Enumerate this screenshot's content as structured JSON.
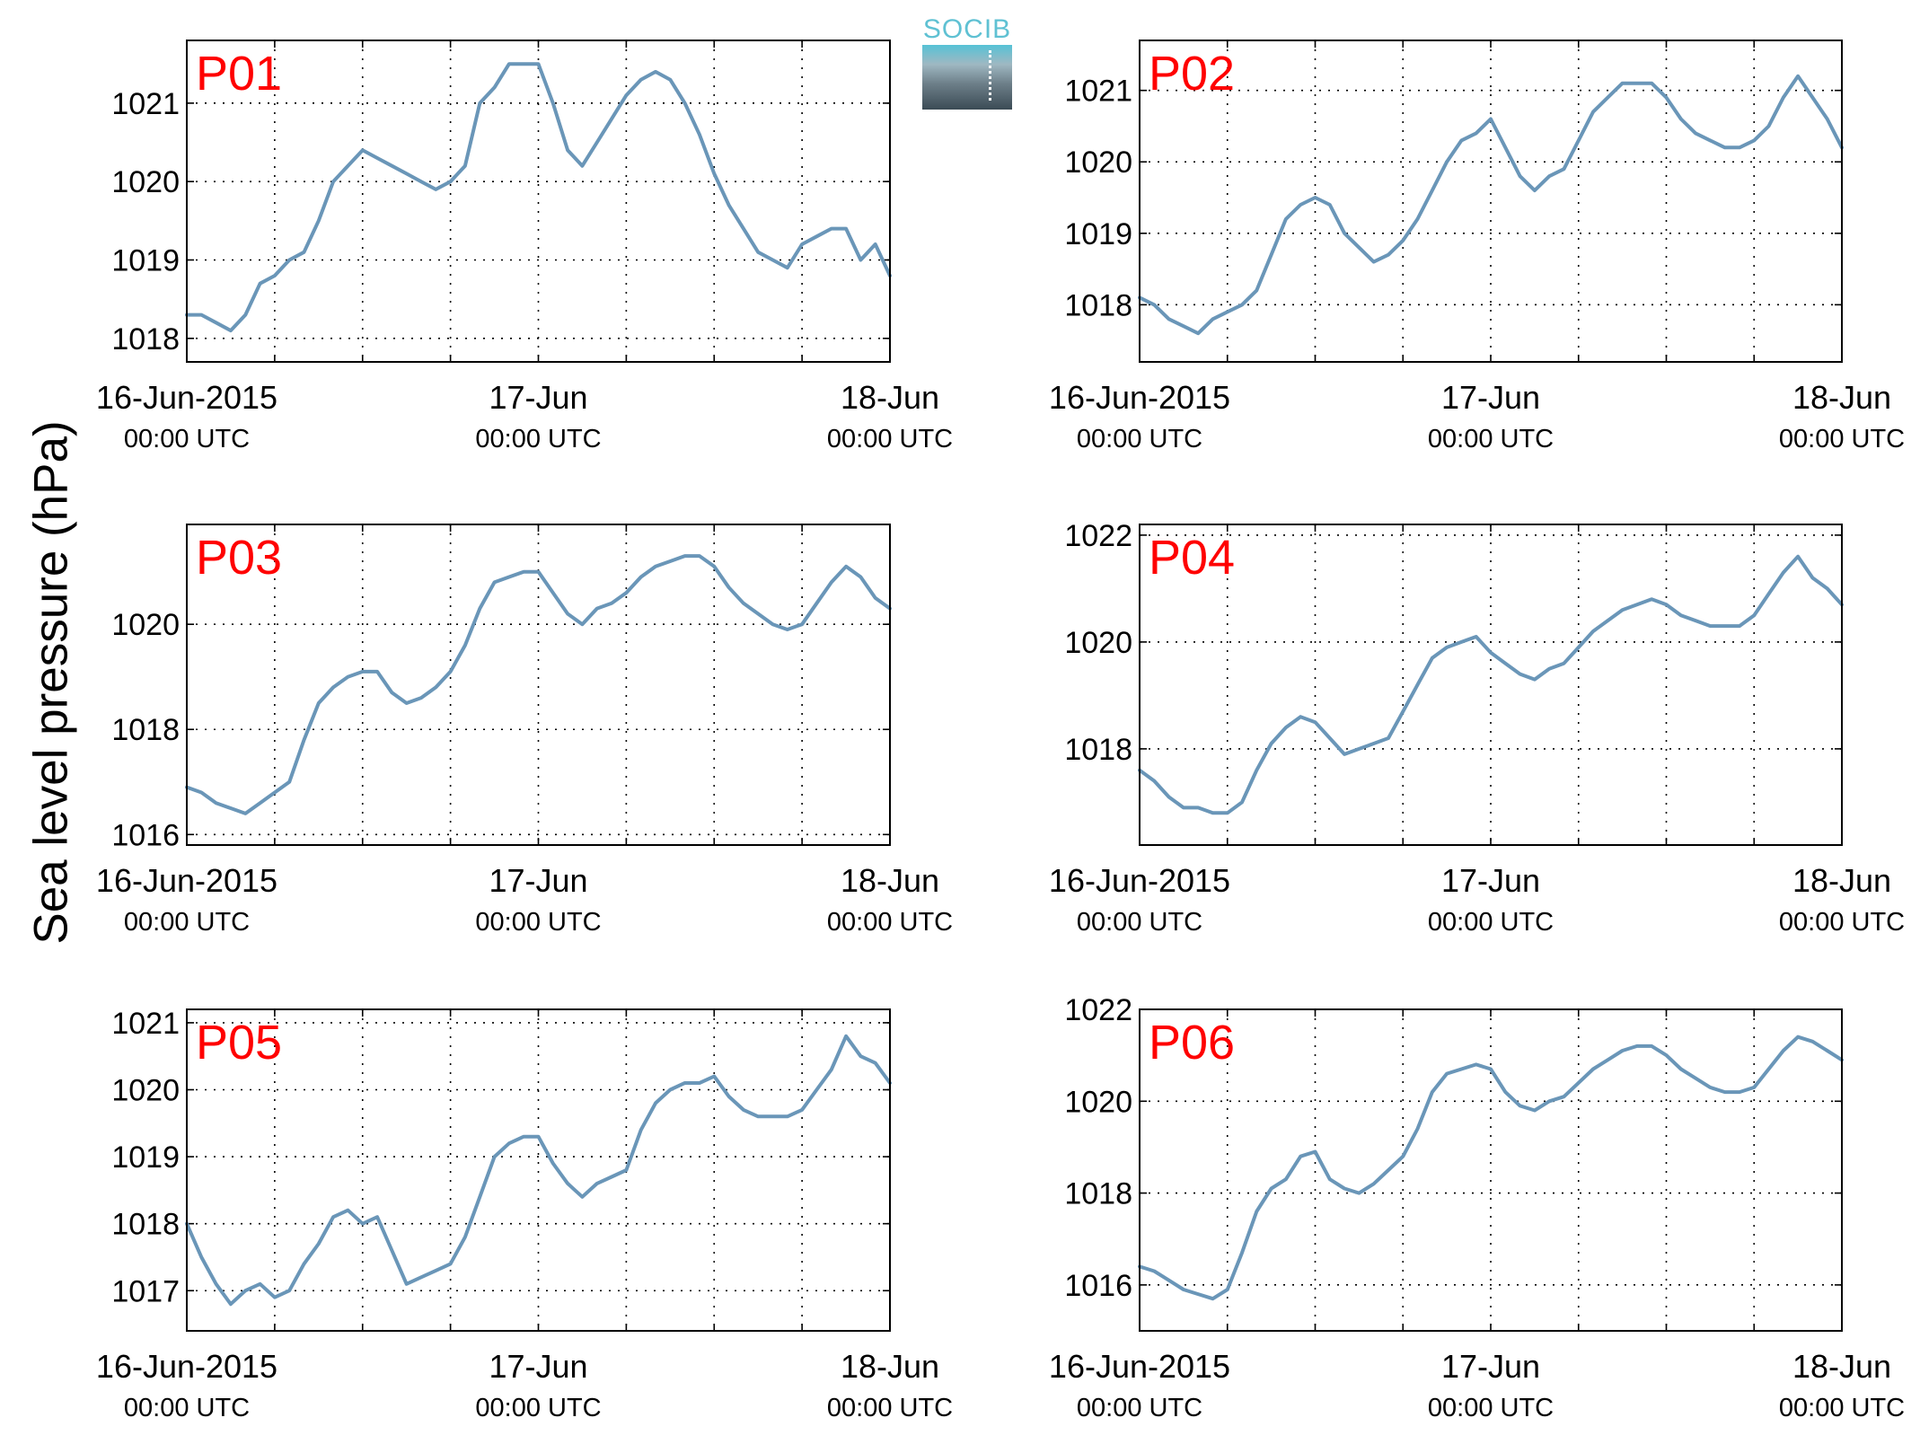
{
  "figure": {
    "ylabel": "Sea level pressure (hPa)",
    "logo_text": "SOCIB",
    "colors": {
      "line": "#6a96b8",
      "panel_label": "#ff0000",
      "grid": "#000000"
    }
  },
  "chart_data": [
    {
      "type": "line",
      "panel_label": "P01",
      "xticks": [
        {
          "main": "16-Jun-2015",
          "sub": "00:00 UTC",
          "hour": 0
        },
        {
          "main": "17-Jun",
          "sub": "00:00 UTC",
          "hour": 24
        },
        {
          "main": "18-Jun",
          "sub": "00:00 UTC",
          "hour": 48
        }
      ],
      "xlim": [
        0,
        48
      ],
      "ylim": [
        1017.7,
        1021.8
      ],
      "yticks": [
        1018,
        1019,
        1020,
        1021
      ],
      "grid": true,
      "series": [
        {
          "x": [
            0,
            1,
            2,
            3,
            4,
            5,
            6,
            7,
            8,
            9,
            10,
            11,
            12,
            13,
            14,
            15,
            16,
            17,
            18,
            19,
            20,
            21,
            22,
            23,
            24,
            25,
            26,
            27,
            28,
            29,
            30,
            31,
            32,
            33,
            34,
            35,
            36,
            37,
            38,
            39,
            40,
            41,
            42,
            43,
            44,
            45,
            46,
            47,
            48
          ],
          "values": [
            1018.3,
            1018.3,
            1018.2,
            1018.1,
            1018.3,
            1018.7,
            1018.8,
            1019.0,
            1019.1,
            1019.5,
            1020.0,
            1020.2,
            1020.4,
            1020.3,
            1020.2,
            1020.1,
            1020.0,
            1019.9,
            1020.0,
            1020.2,
            1021.0,
            1021.2,
            1021.5,
            1021.5,
            1021.5,
            1021.0,
            1020.4,
            1020.2,
            1020.5,
            1020.8,
            1021.1,
            1021.3,
            1021.4,
            1021.3,
            1021.0,
            1020.6,
            1020.1,
            1019.7,
            1019.4,
            1019.1,
            1019.0,
            1018.9,
            1019.2,
            1019.3,
            1019.4,
            1019.4,
            1019.0,
            1019.2,
            1018.8
          ]
        }
      ]
    },
    {
      "type": "line",
      "panel_label": "P02",
      "xticks": [
        {
          "main": "16-Jun-2015",
          "sub": "00:00 UTC",
          "hour": 0
        },
        {
          "main": "17-Jun",
          "sub": "00:00 UTC",
          "hour": 24
        },
        {
          "main": "18-Jun",
          "sub": "00:00 UTC",
          "hour": 48
        }
      ],
      "xlim": [
        0,
        48
      ],
      "ylim": [
        1017.2,
        1021.7
      ],
      "yticks": [
        1018,
        1019,
        1020,
        1021
      ],
      "grid": true,
      "series": [
        {
          "x": [
            0,
            1,
            2,
            3,
            4,
            5,
            6,
            7,
            8,
            9,
            10,
            11,
            12,
            13,
            14,
            15,
            16,
            17,
            18,
            19,
            20,
            21,
            22,
            23,
            24,
            25,
            26,
            27,
            28,
            29,
            30,
            31,
            32,
            33,
            34,
            35,
            36,
            37,
            38,
            39,
            40,
            41,
            42,
            43,
            44,
            45,
            46,
            47,
            48
          ],
          "values": [
            1018.1,
            1018.0,
            1017.8,
            1017.7,
            1017.6,
            1017.8,
            1017.9,
            1018.0,
            1018.2,
            1018.7,
            1019.2,
            1019.4,
            1019.5,
            1019.4,
            1019.0,
            1018.8,
            1018.6,
            1018.7,
            1018.9,
            1019.2,
            1019.6,
            1020.0,
            1020.3,
            1020.4,
            1020.6,
            1020.2,
            1019.8,
            1019.6,
            1019.8,
            1019.9,
            1020.3,
            1020.7,
            1020.9,
            1021.1,
            1021.1,
            1021.1,
            1020.9,
            1020.6,
            1020.4,
            1020.3,
            1020.2,
            1020.2,
            1020.3,
            1020.5,
            1020.9,
            1021.2,
            1020.9,
            1020.6,
            1020.2
          ]
        }
      ]
    },
    {
      "type": "line",
      "panel_label": "P03",
      "xticks": [
        {
          "main": "16-Jun-2015",
          "sub": "00:00 UTC",
          "hour": 0
        },
        {
          "main": "17-Jun",
          "sub": "00:00 UTC",
          "hour": 24
        },
        {
          "main": "18-Jun",
          "sub": "00:00 UTC",
          "hour": 48
        }
      ],
      "xlim": [
        0,
        48
      ],
      "ylim": [
        1015.8,
        1021.9
      ],
      "yticks": [
        1016,
        1018,
        1020
      ],
      "grid": true,
      "series": [
        {
          "x": [
            0,
            1,
            2,
            3,
            4,
            5,
            6,
            7,
            8,
            9,
            10,
            11,
            12,
            13,
            14,
            15,
            16,
            17,
            18,
            19,
            20,
            21,
            22,
            23,
            24,
            25,
            26,
            27,
            28,
            29,
            30,
            31,
            32,
            33,
            34,
            35,
            36,
            37,
            38,
            39,
            40,
            41,
            42,
            43,
            44,
            45,
            46,
            47,
            48
          ],
          "values": [
            1016.9,
            1016.8,
            1016.6,
            1016.5,
            1016.4,
            1016.6,
            1016.8,
            1017.0,
            1017.8,
            1018.5,
            1018.8,
            1019.0,
            1019.1,
            1019.1,
            1018.7,
            1018.5,
            1018.6,
            1018.8,
            1019.1,
            1019.6,
            1020.3,
            1020.8,
            1020.9,
            1021.0,
            1021.0,
            1020.6,
            1020.2,
            1020.0,
            1020.3,
            1020.4,
            1020.6,
            1020.9,
            1021.1,
            1021.2,
            1021.3,
            1021.3,
            1021.1,
            1020.7,
            1020.4,
            1020.2,
            1020.0,
            1019.9,
            1020.0,
            1020.4,
            1020.8,
            1021.1,
            1020.9,
            1020.5,
            1020.3
          ]
        }
      ]
    },
    {
      "type": "line",
      "panel_label": "P04",
      "xticks": [
        {
          "main": "16-Jun-2015",
          "sub": "00:00 UTC",
          "hour": 0
        },
        {
          "main": "17-Jun",
          "sub": "00:00 UTC",
          "hour": 24
        },
        {
          "main": "18-Jun",
          "sub": "00:00 UTC",
          "hour": 48
        }
      ],
      "xlim": [
        0,
        48
      ],
      "ylim": [
        1016.2,
        1022.2
      ],
      "yticks": [
        1018,
        1020,
        1022
      ],
      "grid": true,
      "series": [
        {
          "x": [
            0,
            1,
            2,
            3,
            4,
            5,
            6,
            7,
            8,
            9,
            10,
            11,
            12,
            13,
            14,
            15,
            16,
            17,
            18,
            19,
            20,
            21,
            22,
            23,
            24,
            25,
            26,
            27,
            28,
            29,
            30,
            31,
            32,
            33,
            34,
            35,
            36,
            37,
            38,
            39,
            40,
            41,
            42,
            43,
            44,
            45,
            46,
            47,
            48
          ],
          "values": [
            1017.6,
            1017.4,
            1017.1,
            1016.9,
            1016.9,
            1016.8,
            1016.8,
            1017.0,
            1017.6,
            1018.1,
            1018.4,
            1018.6,
            1018.5,
            1018.2,
            1017.9,
            1018.0,
            1018.1,
            1018.2,
            1018.7,
            1019.2,
            1019.7,
            1019.9,
            1020.0,
            1020.1,
            1019.8,
            1019.6,
            1019.4,
            1019.3,
            1019.5,
            1019.6,
            1019.9,
            1020.2,
            1020.4,
            1020.6,
            1020.7,
            1020.8,
            1020.7,
            1020.5,
            1020.4,
            1020.3,
            1020.3,
            1020.3,
            1020.5,
            1020.9,
            1021.3,
            1021.6,
            1021.2,
            1021.0,
            1020.7
          ]
        }
      ]
    },
    {
      "type": "line",
      "panel_label": "P05",
      "xticks": [
        {
          "main": "16-Jun-2015",
          "sub": "00:00 UTC",
          "hour": 0
        },
        {
          "main": "17-Jun",
          "sub": "00:00 UTC",
          "hour": 24
        },
        {
          "main": "18-Jun",
          "sub": "00:00 UTC",
          "hour": 48
        }
      ],
      "xlim": [
        0,
        48
      ],
      "ylim": [
        1016.4,
        1021.2
      ],
      "yticks": [
        1017,
        1018,
        1019,
        1020,
        1021
      ],
      "grid": true,
      "series": [
        {
          "x": [
            0,
            1,
            2,
            3,
            4,
            5,
            6,
            7,
            8,
            9,
            10,
            11,
            12,
            13,
            14,
            15,
            16,
            17,
            18,
            19,
            20,
            21,
            22,
            23,
            24,
            25,
            26,
            27,
            28,
            29,
            30,
            31,
            32,
            33,
            34,
            35,
            36,
            37,
            38,
            39,
            40,
            41,
            42,
            43,
            44,
            45,
            46,
            47,
            48
          ],
          "values": [
            1018.0,
            1017.5,
            1017.1,
            1016.8,
            1017.0,
            1017.1,
            1016.9,
            1017.0,
            1017.4,
            1017.7,
            1018.1,
            1018.2,
            1018.0,
            1018.1,
            1017.6,
            1017.1,
            1017.2,
            1017.3,
            1017.4,
            1017.8,
            1018.4,
            1019.0,
            1019.2,
            1019.3,
            1019.3,
            1018.9,
            1018.6,
            1018.4,
            1018.6,
            1018.7,
            1018.8,
            1019.4,
            1019.8,
            1020.0,
            1020.1,
            1020.1,
            1020.2,
            1019.9,
            1019.7,
            1019.6,
            1019.6,
            1019.6,
            1019.7,
            1020.0,
            1020.3,
            1020.8,
            1020.5,
            1020.4,
            1020.1
          ]
        }
      ]
    },
    {
      "type": "line",
      "panel_label": "P06",
      "xticks": [
        {
          "main": "16-Jun-2015",
          "sub": "00:00 UTC",
          "hour": 0
        },
        {
          "main": "17-Jun",
          "sub": "00:00 UTC",
          "hour": 24
        },
        {
          "main": "18-Jun",
          "sub": "00:00 UTC",
          "hour": 48
        }
      ],
      "xlim": [
        0,
        48
      ],
      "ylim": [
        1015.0,
        1022.0
      ],
      "yticks": [
        1016,
        1018,
        1020,
        1022
      ],
      "grid": true,
      "series": [
        {
          "x": [
            0,
            1,
            2,
            3,
            4,
            5,
            6,
            7,
            8,
            9,
            10,
            11,
            12,
            13,
            14,
            15,
            16,
            17,
            18,
            19,
            20,
            21,
            22,
            23,
            24,
            25,
            26,
            27,
            28,
            29,
            30,
            31,
            32,
            33,
            34,
            35,
            36,
            37,
            38,
            39,
            40,
            41,
            42,
            43,
            44,
            45,
            46,
            47,
            48
          ],
          "values": [
            1016.4,
            1016.3,
            1016.1,
            1015.9,
            1015.8,
            1015.7,
            1015.9,
            1016.7,
            1017.6,
            1018.1,
            1018.3,
            1018.8,
            1018.9,
            1018.3,
            1018.1,
            1018.0,
            1018.2,
            1018.5,
            1018.8,
            1019.4,
            1020.2,
            1020.6,
            1020.7,
            1020.8,
            1020.7,
            1020.2,
            1019.9,
            1019.8,
            1020.0,
            1020.1,
            1020.4,
            1020.7,
            1020.9,
            1021.1,
            1021.2,
            1021.2,
            1021.0,
            1020.7,
            1020.5,
            1020.3,
            1020.2,
            1020.2,
            1020.3,
            1020.7,
            1021.1,
            1021.4,
            1021.3,
            1021.1,
            1020.9
          ]
        }
      ]
    }
  ]
}
